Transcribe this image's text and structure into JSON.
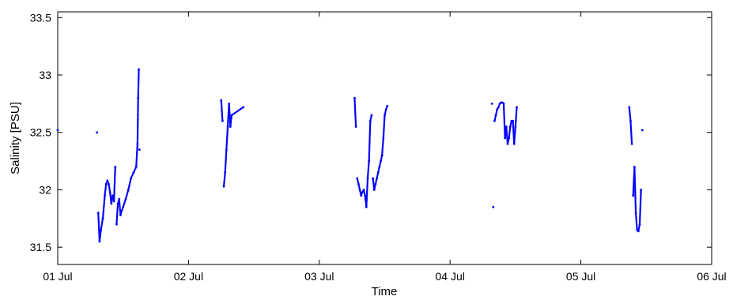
{
  "chart_data": {
    "type": "scatter",
    "title": "",
    "xlabel": "Time",
    "ylabel": "Salinity [PSU]",
    "x_unit": "days",
    "xlim": [
      0,
      5
    ],
    "ylim": [
      31.35,
      33.55
    ],
    "x_ticks": [
      {
        "value": 0,
        "label": "01 Jul"
      },
      {
        "value": 1,
        "label": "02 Jul"
      },
      {
        "value": 2,
        "label": "03 Jul"
      },
      {
        "value": 3,
        "label": "04 Jul"
      },
      {
        "value": 4,
        "label": "05 Jul"
      },
      {
        "value": 5,
        "label": "06 Jul"
      }
    ],
    "y_ticks": [
      {
        "value": 31.5,
        "label": "31.5"
      },
      {
        "value": 32,
        "label": "32"
      },
      {
        "value": 32.5,
        "label": "32.5"
      },
      {
        "value": 33,
        "label": "33"
      },
      {
        "value": 33.5,
        "label": "33.5"
      }
    ],
    "grid": false,
    "marker_color": "#0000ff",
    "series": [
      {
        "values": [
          [
            0.3,
            32.5
          ],
          [
            0.31,
            31.8
          ],
          [
            0.32,
            31.55
          ],
          [
            0.33,
            31.65
          ],
          [
            0.345,
            31.75
          ],
          [
            0.36,
            31.95
          ],
          [
            0.37,
            32.05
          ],
          [
            0.38,
            32.08
          ],
          [
            0.39,
            32.05
          ],
          [
            0.4,
            31.98
          ],
          [
            0.41,
            31.88
          ],
          [
            0.42,
            31.95
          ],
          [
            0.43,
            31.9
          ],
          [
            0.44,
            32.2
          ],
          [
            0.45,
            31.7
          ],
          [
            0.46,
            31.88
          ],
          [
            0.47,
            31.92
          ],
          [
            0.48,
            31.78
          ],
          [
            0.49,
            31.82
          ],
          [
            0.5,
            31.85
          ],
          [
            0.52,
            31.92
          ],
          [
            0.54,
            32.0
          ],
          [
            0.56,
            32.1
          ],
          [
            0.58,
            32.15
          ],
          [
            0.6,
            32.2
          ],
          [
            0.61,
            32.4
          ],
          [
            0.615,
            32.8
          ],
          [
            0.62,
            33.05
          ],
          [
            0.625,
            32.35
          ]
        ]
      },
      {
        "values": [
          [
            0.0,
            32.52
          ]
        ]
      },
      {
        "values": [
          [
            1.25,
            32.78
          ],
          [
            1.26,
            32.6
          ],
          [
            1.27,
            32.03
          ],
          [
            1.28,
            32.15
          ],
          [
            1.29,
            32.35
          ],
          [
            1.3,
            32.55
          ],
          [
            1.31,
            32.75
          ],
          [
            1.32,
            32.55
          ],
          [
            1.33,
            32.65
          ],
          [
            1.42,
            32.72
          ]
        ]
      },
      {
        "values": [
          [
            2.27,
            32.8
          ],
          [
            2.28,
            32.55
          ],
          [
            2.29,
            32.1
          ],
          [
            2.3,
            32.05
          ],
          [
            2.31,
            32.0
          ],
          [
            2.32,
            31.95
          ],
          [
            2.33,
            31.98
          ],
          [
            2.34,
            32.0
          ],
          [
            2.35,
            31.95
          ],
          [
            2.36,
            31.85
          ],
          [
            2.37,
            32.1
          ],
          [
            2.38,
            32.25
          ],
          [
            2.39,
            32.6
          ],
          [
            2.4,
            32.65
          ],
          [
            2.41,
            32.1
          ],
          [
            2.42,
            32.0
          ],
          [
            2.43,
            32.05
          ],
          [
            2.44,
            32.1
          ],
          [
            2.45,
            32.15
          ],
          [
            2.46,
            32.2
          ],
          [
            2.47,
            32.25
          ],
          [
            2.48,
            32.3
          ],
          [
            2.49,
            32.45
          ],
          [
            2.5,
            32.65
          ],
          [
            2.51,
            32.7
          ],
          [
            2.52,
            32.73
          ]
        ]
      },
      {
        "values": [
          [
            3.32,
            32.75
          ],
          [
            3.33,
            31.85
          ],
          [
            3.34,
            32.6
          ],
          [
            3.35,
            32.65
          ],
          [
            3.36,
            32.7
          ],
          [
            3.37,
            32.72
          ],
          [
            3.38,
            32.75
          ],
          [
            3.39,
            32.76
          ],
          [
            3.4,
            32.76
          ],
          [
            3.41,
            32.75
          ],
          [
            3.42,
            32.45
          ],
          [
            3.43,
            32.55
          ],
          [
            3.44,
            32.4
          ],
          [
            3.45,
            32.45
          ],
          [
            3.46,
            32.55
          ],
          [
            3.47,
            32.6
          ],
          [
            3.48,
            32.6
          ],
          [
            3.49,
            32.4
          ],
          [
            3.5,
            32.55
          ],
          [
            3.51,
            32.72
          ]
        ]
      },
      {
        "values": [
          [
            4.37,
            32.72
          ],
          [
            4.38,
            32.6
          ],
          [
            4.39,
            32.4
          ],
          [
            4.4,
            31.95
          ],
          [
            4.41,
            32.2
          ],
          [
            4.42,
            31.8
          ],
          [
            4.43,
            31.65
          ],
          [
            4.44,
            31.64
          ],
          [
            4.45,
            31.7
          ],
          [
            4.46,
            32.0
          ],
          [
            4.47,
            32.52
          ]
        ]
      }
    ]
  }
}
